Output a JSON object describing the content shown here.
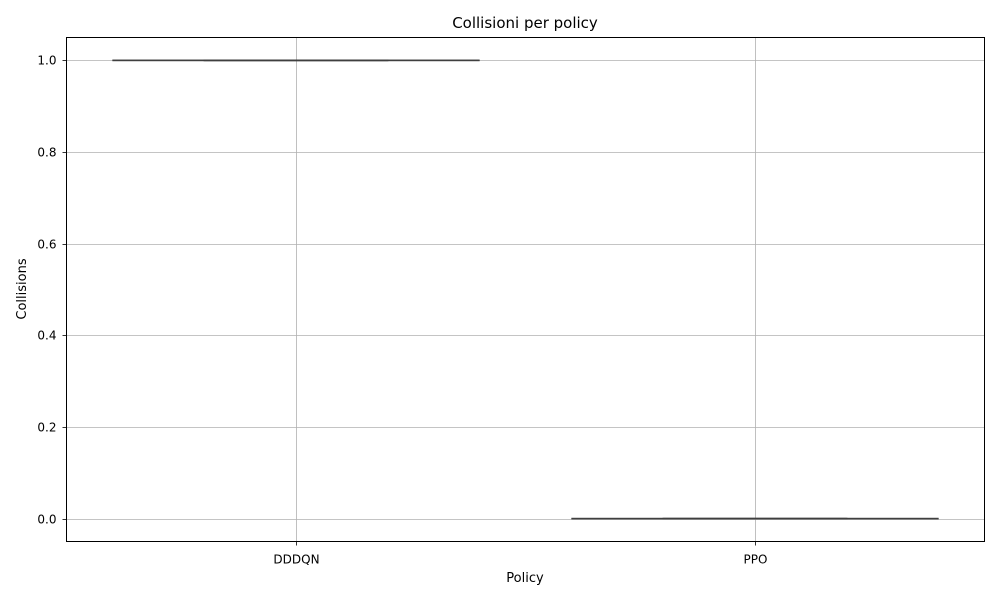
{
  "chart_data": {
    "type": "box",
    "title": "Collisioni per policy",
    "xlabel": "Policy",
    "ylabel": "Collisions",
    "categories": [
      "DDDQN",
      "PPO"
    ],
    "boxes": [
      {
        "name": "DDDQN",
        "min": 1.0,
        "q1": 1.0,
        "median": 1.0,
        "q3": 1.0,
        "max": 1.0
      },
      {
        "name": "PPO",
        "min": 0.0,
        "q1": 0.0,
        "median": 0.0,
        "q3": 0.0,
        "max": 0.0
      }
    ],
    "yticks": [
      0.0,
      0.2,
      0.4,
      0.6,
      0.8,
      1.0
    ],
    "ytick_labels": [
      "0.0",
      "0.2",
      "0.4",
      "0.6",
      "0.8",
      "1.0"
    ],
    "ylim": [
      -0.05,
      1.05
    ],
    "grid": true,
    "legend": "none"
  }
}
